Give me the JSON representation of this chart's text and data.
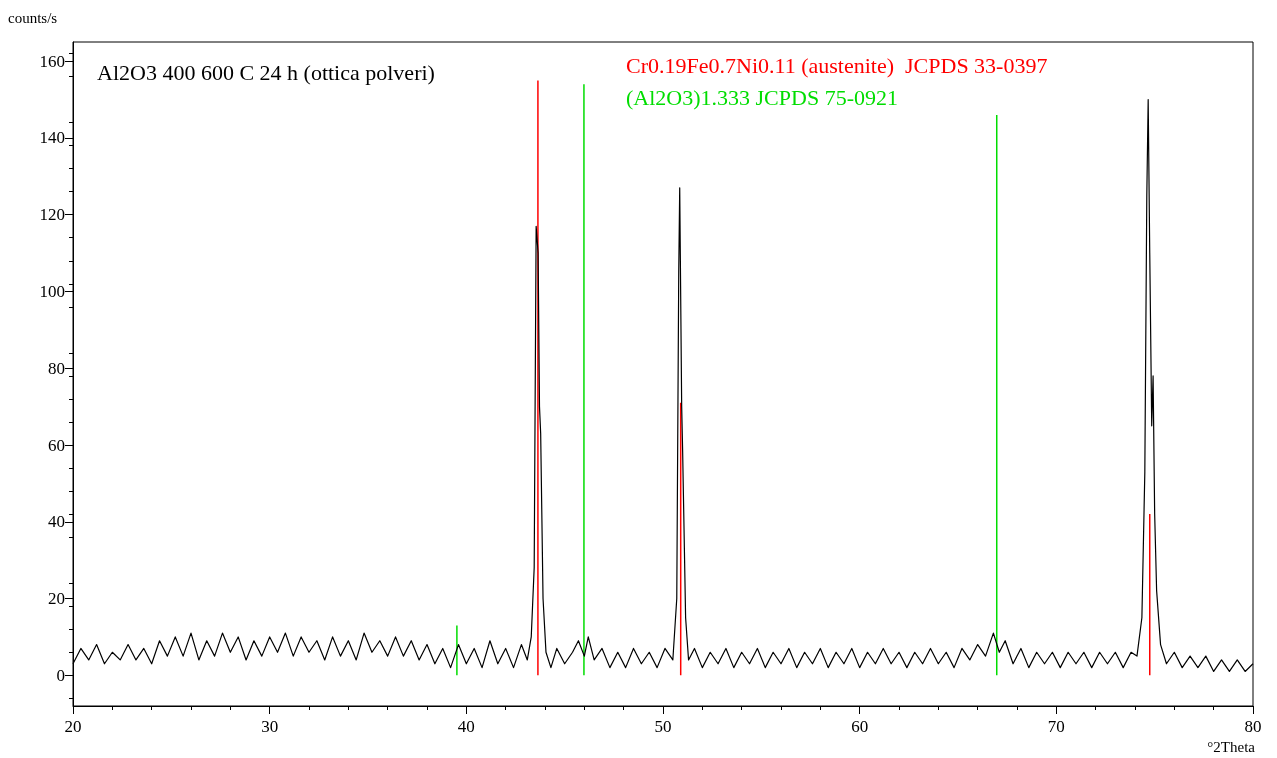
{
  "chart_data": {
    "type": "line",
    "title": "Al2O3 400 600 C 24 h (ottica polveri)",
    "xlabel": "°2Theta",
    "ylabel": "counts/s",
    "xlim": [
      20,
      80
    ],
    "xticks": [
      20,
      30,
      40,
      50,
      60,
      70,
      80
    ],
    "ylim": [
      -8,
      165
    ],
    "yticks": [
      0,
      20,
      40,
      60,
      80,
      100,
      120,
      140,
      160
    ],
    "grid": false,
    "marker": "none",
    "line_style": "solid",
    "series": [
      {
        "color": "#000000",
        "x": [
          20,
          20.4,
          20.8,
          21.2,
          21.6,
          22,
          22.4,
          22.8,
          23.2,
          23.6,
          24,
          24.4,
          24.8,
          25.2,
          25.6,
          26,
          26.4,
          26.8,
          27.2,
          27.6,
          28,
          28.4,
          28.8,
          29.2,
          29.6,
          30,
          30.4,
          30.8,
          31.2,
          31.6,
          32,
          32.4,
          32.8,
          33.2,
          33.6,
          34,
          34.4,
          34.8,
          35.2,
          35.6,
          36,
          36.4,
          36.8,
          37.2,
          37.6,
          38,
          38.4,
          38.8,
          39.2,
          39.6,
          40,
          40.4,
          40.8,
          41.2,
          41.6,
          42,
          42.4,
          42.8,
          43.1,
          43.3,
          43.45,
          43.55,
          43.65,
          43.72,
          43.78,
          43.9,
          44.05,
          44.3,
          44.6,
          45,
          45.4,
          45.7,
          46,
          46.2,
          46.5,
          46.9,
          47.3,
          47.7,
          48.1,
          48.5,
          48.9,
          49.3,
          49.7,
          50.1,
          50.5,
          50.7,
          50.8,
          50.85,
          50.95,
          51.0,
          51.15,
          51.3,
          51.6,
          52,
          52.4,
          52.8,
          53.2,
          53.6,
          54,
          54.4,
          54.8,
          55.2,
          55.6,
          56,
          56.4,
          56.8,
          57.2,
          57.6,
          58,
          58.4,
          58.8,
          59.2,
          59.6,
          60,
          60.4,
          60.8,
          61.2,
          61.6,
          62,
          62.4,
          62.8,
          63.2,
          63.6,
          64,
          64.4,
          64.8,
          65.2,
          65.6,
          66,
          66.4,
          66.8,
          67.1,
          67.4,
          67.8,
          68.2,
          68.6,
          69,
          69.4,
          69.8,
          70.2,
          70.6,
          71,
          71.4,
          71.8,
          72.2,
          72.6,
          73,
          73.4,
          73.8,
          74.1,
          74.35,
          74.5,
          74.6,
          74.67,
          74.75,
          74.85,
          74.92,
          75.0,
          75.1,
          75.3,
          75.6,
          76,
          76.4,
          76.8,
          77.2,
          77.6,
          78,
          78.4,
          78.8,
          79.2,
          79.6,
          80
        ],
        "values": [
          3,
          7,
          4,
          8,
          3,
          6,
          4,
          8,
          4,
          7,
          3,
          9,
          5,
          10,
          5,
          11,
          4,
          9,
          5,
          11,
          6,
          10,
          4,
          9,
          5,
          10,
          6,
          11,
          5,
          10,
          6,
          9,
          4,
          10,
          5,
          9,
          4,
          11,
          6,
          9,
          5,
          10,
          5,
          9,
          4,
          8,
          3,
          7,
          2,
          8,
          3,
          7,
          2,
          9,
          3,
          7,
          2,
          8,
          4,
          10,
          28,
          117,
          110,
          70,
          63,
          20,
          6,
          2,
          7,
          3,
          6,
          9,
          5,
          10,
          4,
          7,
          2,
          6,
          2,
          7,
          3,
          6,
          2,
          7,
          4,
          20,
          105,
          127,
          70,
          58,
          15,
          4,
          7,
          2,
          6,
          3,
          7,
          2,
          6,
          3,
          7,
          2,
          6,
          3,
          7,
          2,
          6,
          3,
          7,
          2,
          6,
          3,
          7,
          2,
          6,
          3,
          7,
          3,
          6,
          2,
          6,
          3,
          7,
          3,
          6,
          2,
          7,
          4,
          8,
          5,
          11,
          6,
          9,
          3,
          7,
          2,
          6,
          3,
          6,
          2,
          6,
          3,
          6,
          2,
          6,
          3,
          6,
          2,
          6,
          5,
          15,
          53,
          125,
          150,
          110,
          65,
          78,
          42,
          22,
          8,
          3,
          6,
          2,
          5,
          2,
          5,
          1,
          4,
          1,
          4,
          1,
          3
        ]
      },
      {
        "type": "bar",
        "name": "Cr0.19Fe0.7Ni0.11 (austenite)  JCPDS 33-0397",
        "color": "#ff0000",
        "x": [
          43.64,
          50.9,
          74.75
        ],
        "values": [
          155,
          71,
          42
        ]
      },
      {
        "type": "bar",
        "name": "(Al2O3)1.333 JCPDS 75-0921",
        "color": "#00dd00",
        "x": [
          39.52,
          45.98,
          66.97
        ],
        "values": [
          13,
          154,
          146
        ]
      }
    ]
  }
}
